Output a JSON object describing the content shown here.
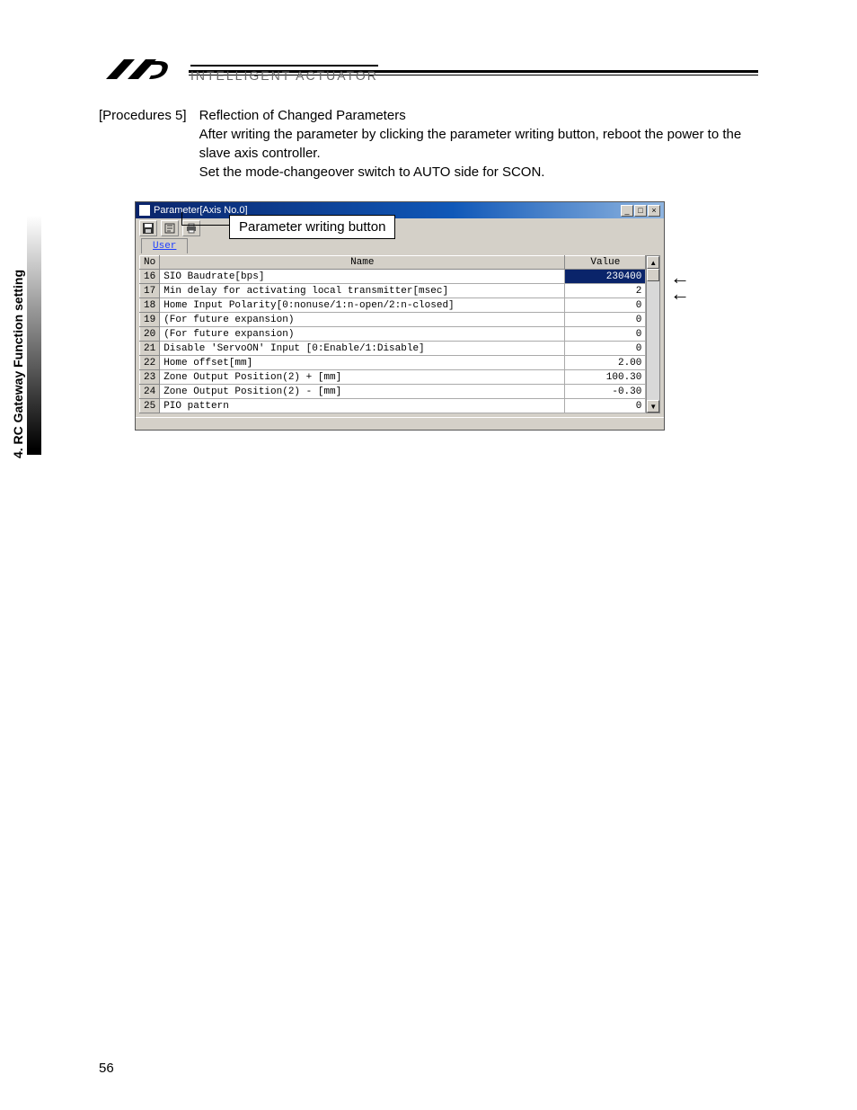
{
  "header": {
    "brand_text": "INTELLIGENT ACTUATOR",
    "logo_parallelogram_color": "#000000"
  },
  "side_tab": "4. RC Gateway Function setting",
  "procedure": {
    "label": "[Procedures 5]",
    "title": "Reflection of Changed Parameters",
    "body1": "After writing the parameter by clicking the parameter writing button, reboot the power to the slave axis controller.",
    "body2": "Set the mode-changeover switch to AUTO side for SCON."
  },
  "callout": "Parameter writing button",
  "window": {
    "title": "Parameter[Axis No.0]",
    "tab": "User",
    "columns": {
      "no": "No",
      "name": "Name",
      "value": "Value"
    },
    "rows": [
      {
        "no": "16",
        "name": "SIO Baudrate[bps]",
        "value": "230400",
        "selected": true,
        "arrow": true
      },
      {
        "no": "17",
        "name": "Min delay for activating local transmitter[msec]",
        "value": "2",
        "arrow": true
      },
      {
        "no": "18",
        "name": "Home Input Polarity[0:nonuse/1:n-open/2:n-closed]",
        "value": "0"
      },
      {
        "no": "19",
        "name": "(For future expansion)",
        "value": "0"
      },
      {
        "no": "20",
        "name": "(For future expansion)",
        "value": "0"
      },
      {
        "no": "21",
        "name": "Disable 'ServoON' Input [0:Enable/1:Disable]",
        "value": "0"
      },
      {
        "no": "22",
        "name": "Home offset[mm]",
        "value": "2.00"
      },
      {
        "no": "23",
        "name": "Zone Output Position(2) + [mm]",
        "value": "100.30"
      },
      {
        "no": "24",
        "name": "Zone Output Position(2) - [mm]",
        "value": "-0.30"
      },
      {
        "no": "25",
        "name": "PIO pattern",
        "value": "0"
      }
    ],
    "controls": {
      "min": "_",
      "max": "□",
      "close": "×",
      "up": "▲",
      "down": "▼"
    }
  },
  "page_number": "56",
  "colors": {
    "titlebar_start": "#0a246a",
    "titlebar_end": "#8fb5e0",
    "win_face": "#d4d0c8",
    "link": "#2040ff",
    "selected_bg": "#0a246a"
  }
}
